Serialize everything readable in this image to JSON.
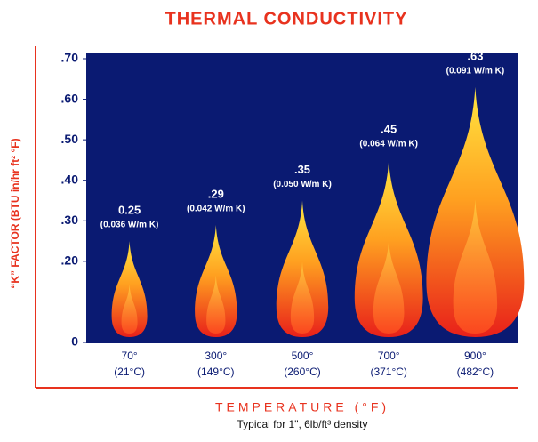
{
  "chart_data": {
    "type": "flame",
    "title": "THERMAL CONDUCTIVITY",
    "y_label": "“K” FACTOR (BTU in/hr ft² °F)",
    "x_label": "TEMPERATURE (°F)",
    "subtitle": "Typical for 1\", 6lb/ft³ density",
    "categories": [
      "70°",
      "300°",
      "500°",
      "700°",
      "900°"
    ],
    "celsius": [
      "(21°C)",
      "(149°C)",
      "(260°C)",
      "(371°C)",
      "(482°C)"
    ],
    "values": [
      0.25,
      0.29,
      0.35,
      0.45,
      0.63
    ],
    "value_labels": [
      "0.25",
      ".29",
      ".35",
      ".45",
      ".63"
    ],
    "metric_labels": [
      "(0.036 W/m K)",
      "(0.042 W/m K)",
      "(0.050 W/m K)",
      "(0.064 W/m K)",
      "(0.091 W/m K)"
    ],
    "ylim": [
      0,
      0.7
    ],
    "yticks": [
      0,
      {
        "value": 0.2,
        "label": ".20"
      },
      {
        "value": 0.3,
        "label": ".30"
      },
      {
        "value": 0.4,
        "label": ".40"
      },
      {
        "value": 0.5,
        "label": ".50"
      },
      {
        "value": 0.6,
        "label": ".60"
      },
      {
        "value": 0.7,
        "label": ".70"
      }
    ]
  }
}
